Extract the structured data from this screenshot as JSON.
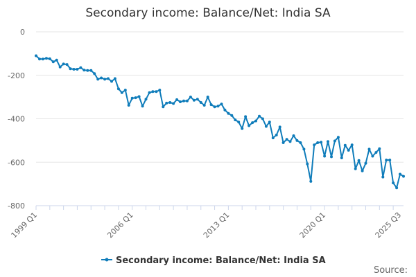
{
  "chart_data": {
    "type": "line",
    "title": "Secondary income: Balance/Net: India SA",
    "xlabel": "",
    "ylabel": "",
    "ylim": [
      -800,
      0
    ],
    "yticks": [
      0,
      -200,
      -400,
      -600,
      -800
    ],
    "x_tick_labels": [
      "1999 Q1",
      "2006 Q1",
      "2013 Q1",
      "2020 Q1",
      "2025 Q3"
    ],
    "x_tick_indices": [
      0,
      28,
      56,
      84,
      106
    ],
    "grid": true,
    "legend_position": "bottom",
    "series": [
      {
        "name": "Secondary income: Balance/Net: India SA",
        "color": "#0f7cba",
        "values": [
          -110,
          -125,
          -125,
          -122,
          -124,
          -138,
          -130,
          -162,
          -148,
          -150,
          -170,
          -172,
          -172,
          -165,
          -176,
          -178,
          -178,
          -192,
          -218,
          -212,
          -218,
          -215,
          -228,
          -215,
          -262,
          -280,
          -268,
          -338,
          -305,
          -303,
          -298,
          -342,
          -310,
          -280,
          -275,
          -275,
          -268,
          -345,
          -328,
          -325,
          -330,
          -312,
          -322,
          -318,
          -318,
          -300,
          -315,
          -310,
          -325,
          -338,
          -300,
          -335,
          -345,
          -342,
          -332,
          -360,
          -375,
          -385,
          -405,
          -415,
          -445,
          -390,
          -432,
          -418,
          -410,
          -388,
          -400,
          -435,
          -415,
          -488,
          -475,
          -438,
          -510,
          -495,
          -505,
          -478,
          -500,
          -510,
          -540,
          -608,
          -688,
          -520,
          -510,
          -508,
          -572,
          -505,
          -575,
          -502,
          -485,
          -580,
          -522,
          -545,
          -520,
          -630,
          -592,
          -640,
          -605,
          -540,
          -572,
          -555,
          -538,
          -668,
          -590,
          -590,
          -695,
          -718,
          -655,
          -665
        ]
      }
    ]
  },
  "legend": {
    "label": "Secondary income: Balance/Net: India SA"
  },
  "footer": {
    "source": "Source:"
  }
}
